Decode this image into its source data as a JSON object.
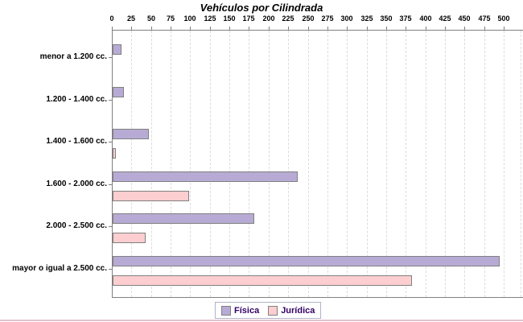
{
  "chart_data": {
    "type": "bar",
    "orientation": "horizontal",
    "title": "Vehículos por Cilindrada",
    "categories": [
      "menor a 1.200 cc.",
      "1.200 - 1.400 cc.",
      "1.400 - 1.600 cc.",
      "1.600 - 2.000 cc.",
      "2.000 - 2.500 cc.",
      "mayor o igual a 2.500 cc."
    ],
    "series": [
      {
        "name": "Física",
        "color": "#b7abd6",
        "values": [
          9,
          12,
          44,
          234,
          179,
          492
        ]
      },
      {
        "name": "Jurídica",
        "color": "#fcced0",
        "values": [
          0,
          0,
          2,
          95,
          40,
          380
        ]
      }
    ],
    "xlim": [
      0,
      500
    ],
    "xticks": [
      0,
      25,
      50,
      75,
      100,
      125,
      150,
      175,
      200,
      225,
      250,
      275,
      300,
      325,
      350,
      375,
      400,
      425,
      450,
      475,
      500
    ],
    "grid": "vertical-dashed",
    "legend_position": "bottom",
    "colors": {
      "bar_border": "#808080",
      "axis": "#808080",
      "gridline": "#dcdcdc",
      "legend_text": "#330066",
      "legend_border": "#b0b4c8",
      "title_text": "#000000"
    }
  }
}
